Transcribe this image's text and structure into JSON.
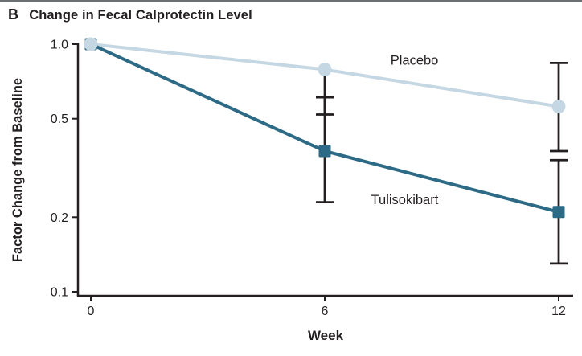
{
  "figure": {
    "panel_letter": "B",
    "title": "Change in Fecal Calprotectin Level"
  },
  "chart_data": {
    "type": "line",
    "x": [
      0,
      6,
      12
    ],
    "xticks": [
      "0",
      "6",
      "12"
    ],
    "xlabel": "Week",
    "ylabel": "Factor Change from Baseline",
    "yscale": "log",
    "ylim": [
      0.1,
      1.0
    ],
    "yticks": [
      "1.0",
      "0.5",
      "0.2",
      "0.1"
    ],
    "ytick_values": [
      1.0,
      0.5,
      0.2,
      0.1
    ],
    "grid": false,
    "legend_position": "inline-labels",
    "series": [
      {
        "name": "Placebo",
        "marker": "circle",
        "color": "#c4d7e2",
        "values": [
          1.0,
          0.79,
          0.56
        ],
        "ci_low": [
          null,
          0.52,
          0.37
        ],
        "ci_high": [
          null,
          null,
          0.84
        ],
        "label_pos": {
          "week": 8.3,
          "value": 0.86
        }
      },
      {
        "name": "Tulisokibart",
        "marker": "square",
        "color": "#2d6a86",
        "values": [
          1.0,
          0.37,
          0.21
        ],
        "ci_low": [
          null,
          0.23,
          0.13
        ],
        "ci_high": [
          null,
          0.61,
          0.34
        ],
        "label_pos": {
          "week": 8.05,
          "value": 0.235
        }
      }
    ],
    "error_bar_color": "#231f20",
    "axis_color": "#231f20"
  },
  "style": {
    "top_border_color": "#6d6e70",
    "text_color": "#231f20",
    "background": "#ffffff"
  }
}
